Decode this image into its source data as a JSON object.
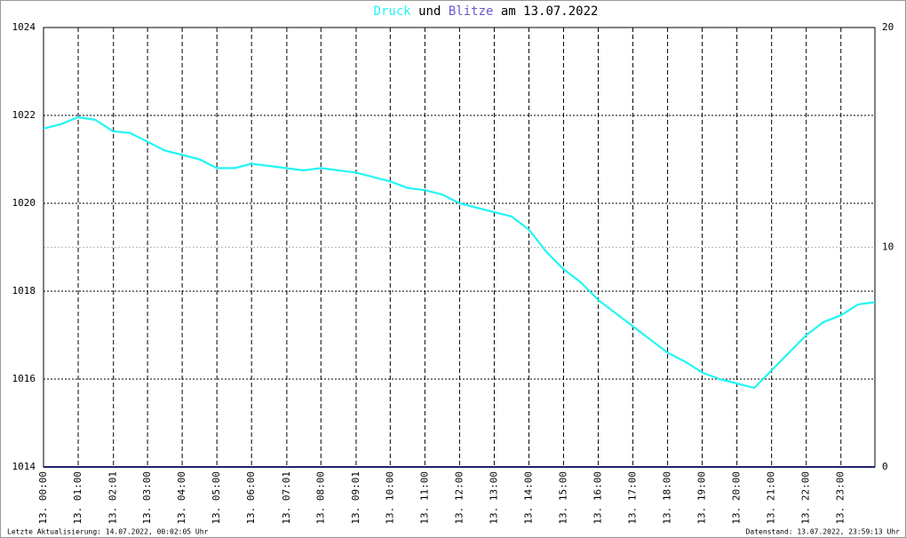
{
  "chart_data": {
    "type": "line",
    "title_mid": "und",
    "title_end": "am 13.07.2022",
    "series": [
      {
        "name": "Druck",
        "color": "#22f5f5",
        "x": [
          0,
          0.5,
          1,
          1.5,
          2,
          2.5,
          3,
          3.5,
          4,
          4.5,
          5,
          5.5,
          6,
          6.5,
          7,
          7.5,
          8,
          8.5,
          9,
          9.5,
          10,
          10.5,
          11,
          11.5,
          12,
          12.5,
          13,
          13.5,
          14,
          14.5,
          15,
          15.5,
          16,
          16.5,
          17,
          17.5,
          18,
          18.5,
          19,
          19.5,
          20,
          20.5,
          21,
          21.5,
          22,
          22.5,
          23,
          23.5,
          23.98
        ],
        "values": [
          1021.7,
          1021.8,
          1021.96,
          1021.9,
          1021.64,
          1021.6,
          1021.4,
          1021.2,
          1021.1,
          1021.0,
          1020.8,
          1020.8,
          1020.9,
          1020.85,
          1020.8,
          1020.75,
          1020.8,
          1020.75,
          1020.7,
          1020.6,
          1020.5,
          1020.35,
          1020.3,
          1020.2,
          1020.0,
          1019.9,
          1019.8,
          1019.7,
          1019.4,
          1018.9,
          1018.5,
          1018.2,
          1017.8,
          1017.5,
          1017.2,
          1016.9,
          1016.6,
          1016.4,
          1016.15,
          1016.0,
          1015.9,
          1015.8,
          1016.2,
          1016.6,
          1017.0,
          1017.3,
          1017.45,
          1017.7,
          1017.75
        ]
      },
      {
        "name": "Blitze",
        "color": "#22226e",
        "axis": "y2",
        "x": [
          0,
          23.98
        ],
        "values": [
          0,
          0
        ]
      }
    ],
    "xlim": [
      0,
      23.98
    ],
    "xticks": [
      {
        "value": 0,
        "label": "13. 00:00"
      },
      {
        "value": 1,
        "label": "13. 01:00"
      },
      {
        "value": 2.017,
        "label": "13. 02:01"
      },
      {
        "value": 3,
        "label": "13. 03:00"
      },
      {
        "value": 4,
        "label": "13. 04:00"
      },
      {
        "value": 5,
        "label": "13. 05:00"
      },
      {
        "value": 6,
        "label": "13. 06:00"
      },
      {
        "value": 7.017,
        "label": "13. 07:01"
      },
      {
        "value": 8,
        "label": "13. 08:00"
      },
      {
        "value": 9.017,
        "label": "13. 09:01"
      },
      {
        "value": 10,
        "label": "13. 10:00"
      },
      {
        "value": 11,
        "label": "13. 11:00"
      },
      {
        "value": 12,
        "label": "13. 12:00"
      },
      {
        "value": 13,
        "label": "13. 13:00"
      },
      {
        "value": 14,
        "label": "13. 14:00"
      },
      {
        "value": 15,
        "label": "13. 15:00"
      },
      {
        "value": 16,
        "label": "13. 16:00"
      },
      {
        "value": 17,
        "label": "13. 17:00"
      },
      {
        "value": 18,
        "label": "13. 18:00"
      },
      {
        "value": 19,
        "label": "13. 19:00"
      },
      {
        "value": 20,
        "label": "13. 20:00"
      },
      {
        "value": 21,
        "label": "13. 21:00"
      },
      {
        "value": 22,
        "label": "13. 22:00"
      },
      {
        "value": 23,
        "label": "13. 23:00"
      }
    ],
    "ylim": [
      1014,
      1024
    ],
    "yticks": [
      1014,
      1016,
      1018,
      1020,
      1022,
      1024
    ],
    "y2lim": [
      0,
      20
    ],
    "y2ticks": [
      0,
      10,
      20
    ],
    "grid": true,
    "footer_left": "Letzte Aktualisierung: 14.07.2022, 00:02:05 Uhr",
    "footer_right": "Datenstand: 13.07.2022, 23:59:13 Uhr"
  }
}
